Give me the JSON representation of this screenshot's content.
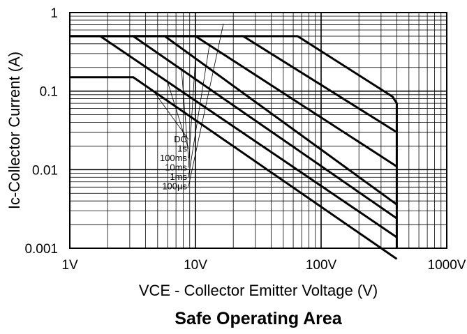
{
  "chart_data": {
    "type": "line",
    "title": "Safe Operating Area",
    "xlabel": "VCE - Collector Emitter Voltage (V)",
    "ylabel": "Ic-Collector Current (A)",
    "x_scale": "log",
    "y_scale": "log",
    "xlim": [
      1,
      1000
    ],
    "ylim": [
      0.001,
      1
    ],
    "grid": true,
    "x_ticks": [
      {
        "value": 1,
        "label": "1V"
      },
      {
        "value": 10,
        "label": "10V"
      },
      {
        "value": 100,
        "label": "100V"
      },
      {
        "value": 1000,
        "label": "1000V"
      }
    ],
    "y_ticks": [
      {
        "value": 1,
        "label": "1"
      },
      {
        "value": 0.1,
        "label": "0.1"
      },
      {
        "value": 0.01,
        "label": "0.01"
      },
      {
        "value": 0.001,
        "label": "0.001"
      }
    ],
    "series": [
      {
        "name": "DC",
        "points": [
          [
            1,
            0.15
          ],
          [
            3.2,
            0.15
          ],
          [
            400,
            0.00073
          ]
        ]
      },
      {
        "name": "1s",
        "points": [
          [
            1.75,
            0.5
          ],
          [
            400,
            0.00138
          ]
        ]
      },
      {
        "name": "100ms",
        "points": [
          [
            3.2,
            0.5
          ],
          [
            400,
            0.0024
          ]
        ]
      },
      {
        "name": "10ms",
        "points": [
          [
            5.7,
            0.5
          ],
          [
            400,
            0.0036
          ]
        ]
      },
      {
        "name": "1ms",
        "points": [
          [
            1,
            0.5
          ],
          [
            10,
            0.5
          ],
          [
            400,
            0.011
          ]
        ]
      },
      {
        "name": "100µs",
        "points": [
          [
            1,
            0.5
          ],
          [
            24,
            0.5
          ],
          [
            400,
            0.03
          ]
        ]
      },
      {
        "name": "",
        "points": [
          [
            1,
            0.5
          ],
          [
            65,
            0.5
          ],
          [
            370,
            0.085
          ],
          [
            400,
            0.07
          ],
          [
            400,
            0.001
          ]
        ]
      }
    ]
  }
}
